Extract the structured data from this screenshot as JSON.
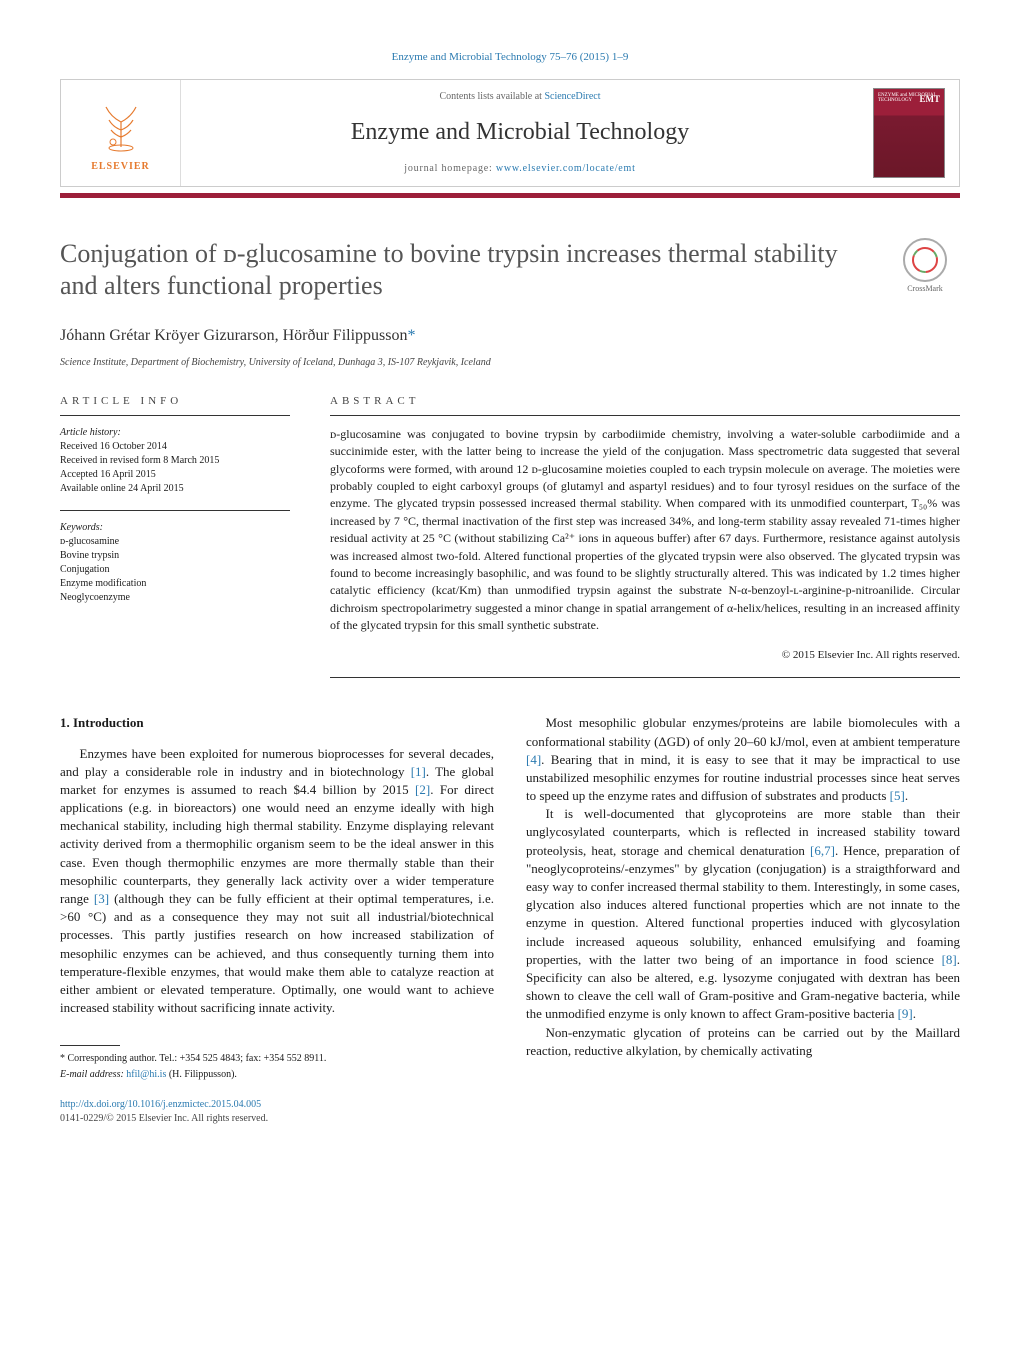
{
  "topRef": "Enzyme and Microbial Technology 75–76 (2015) 1–9",
  "masthead": {
    "publisher": "ELSEVIER",
    "contentsPrefix": "Contents lists available at ",
    "contentsLink": "ScienceDirect",
    "journalTitle": "Enzyme and Microbial Technology",
    "homepagePrefix": "journal homepage: ",
    "homepageUrl": "www.elsevier.com/locate/emt",
    "coverAbbrev": "EMT",
    "coverSmall": "ENZYME and MICROBIAL TECHNOLOGY"
  },
  "article": {
    "title": "Conjugation of ᴅ-glucosamine to bovine trypsin increases thermal stability and alters functional properties",
    "crossmark": "CrossMark",
    "authors": "Jóhann Grétar Kröyer Gizurarson, Hörður Filippusson",
    "corrMark": "*",
    "affiliation": "Science Institute, Department of Biochemistry, University of Iceland, Dunhaga 3, IS-107 Reykjavik, Iceland"
  },
  "info": {
    "label": "article info",
    "historyHead": "Article history:",
    "received": "Received 16 October 2014",
    "revised": "Received in revised form 8 March 2015",
    "accepted": "Accepted 16 April 2015",
    "online": "Available online 24 April 2015",
    "keywordsHead": "Keywords:",
    "keywords": [
      "ᴅ-glucosamine",
      "Bovine trypsin",
      "Conjugation",
      "Enzyme modification",
      "Neoglycoenzyme"
    ]
  },
  "abstract": {
    "label": "abstract",
    "text": "ᴅ-glucosamine was conjugated to bovine trypsin by carbodiimide chemistry, involving a water-soluble carbodiimide and a succinimide ester, with the latter being to increase the yield of the conjugation. Mass spectrometric data suggested that several glycoforms were formed, with around 12 ᴅ-glucosamine moieties coupled to each trypsin molecule on average. The moieties were probably coupled to eight carboxyl groups (of glutamyl and aspartyl residues) and to four tyrosyl residues on the surface of the enzyme. The glycated trypsin possessed increased thermal stability. When compared with its unmodified counterpart, T₅₀% was increased by 7 °C, thermal inactivation of the first step was increased 34%, and long-term stability assay revealed 71-times higher residual activity at 25 °C (without stabilizing Ca²⁺ ions in aqueous buffer) after 67 days. Furthermore, resistance against autolysis was increased almost two-fold. Altered functional properties of the glycated trypsin were also observed. The glycated trypsin was found to become increasingly basophilic, and was found to be slightly structurally altered. This was indicated by 1.2 times higher catalytic efficiency (kcat/Km) than unmodified trypsin against the substrate N-α-benzoyl-ʟ-arginine-p-nitroanilide. Circular dichroism spectropolarimetry suggested a minor change in spatial arrangement of α-helix/helices, resulting in an increased affinity of the glycated trypsin for this small synthetic substrate.",
    "copyright": "© 2015 Elsevier Inc. All rights reserved."
  },
  "body": {
    "introHeading": "1.  Introduction",
    "leftParas": [
      "Enzymes have been exploited for numerous bioprocesses for several decades, and play a considerable role in industry and in biotechnology [1]. The global market for enzymes is assumed to reach $4.4 billion by 2015 [2]. For direct applications (e.g. in bioreactors) one would need an enzyme ideally with high mechanical stability, including high thermal stability. Enzyme displaying relevant activity derived from a thermophilic organism seem to be the ideal answer in this case. Even though thermophilic enzymes are more thermally stable than their mesophilic counterparts, they generally lack activity over a wider temperature range [3] (although they can be fully efficient at their optimal temperatures, i.e. >60 °C) and as a consequence they may not suit all industrial/biotechnical processes. This partly justifies research on how increased stabilization of mesophilic enzymes can be achieved, and thus consequently turning them into temperature-flexible enzymes, that would make them able to catalyze reaction at either ambient or elevated temperature. Optimally, one would want to achieve increased stability without sacrificing innate activity."
    ],
    "rightParas": [
      "Most mesophilic globular enzymes/proteins are labile biomolecules with a conformational stability (ΔGD) of only 20–60 kJ/mol, even at ambient temperature [4]. Bearing that in mind, it is easy to see that it may be impractical to use unstabilized mesophilic enzymes for routine industrial processes since heat serves to speed up the enzyme rates and diffusion of substrates and products [5].",
      "It is well-documented that glycoproteins are more stable than their unglycosylated counterparts, which is reflected in increased stability toward proteolysis, heat, storage and chemical denaturation [6,7]. Hence, preparation of \"neoglycoproteins/-enzymes\" by glycation (conjugation) is a straigthforward and easy way to confer increased thermal stability to them. Interestingly, in some cases, glycation also induces altered functional properties which are not innate to the enzyme in question. Altered functional properties induced with glycosylation include increased aqueous solubility, enhanced emulsifying and foaming properties, with the latter two being of an importance in food science [8]. Specificity can also be altered, e.g. lysozyme conjugated with dextran has been shown to cleave the cell wall of Gram-positive and Gram-negative bacteria, while the unmodified enzyme is only known to affect Gram-positive bacteria [9].",
      "Non-enzymatic glycation of proteins can be carried out by the Maillard reaction, reductive alkylation, by chemically activating"
    ]
  },
  "footer": {
    "corrNote": "* Corresponding author. Tel.: +354 525 4843; fax: +354 552 8911.",
    "emailPrefix": "E-mail address: ",
    "email": "hfil@hi.is",
    "emailSuffix": " (H. Filippusson).",
    "doi": "http://dx.doi.org/10.1016/j.enzmictec.2015.04.005",
    "issn": "0141-0229/© 2015 Elsevier Inc. All rights reserved."
  },
  "refs": [
    "[1]",
    "[2]",
    "[3]",
    "[4]",
    "[5]",
    "[6,7]",
    "[8]",
    "[9]"
  ],
  "colors": {
    "link": "#2a7ab0",
    "brand": "#9c1f3a",
    "elsevierOrange": "#e67a2e"
  }
}
